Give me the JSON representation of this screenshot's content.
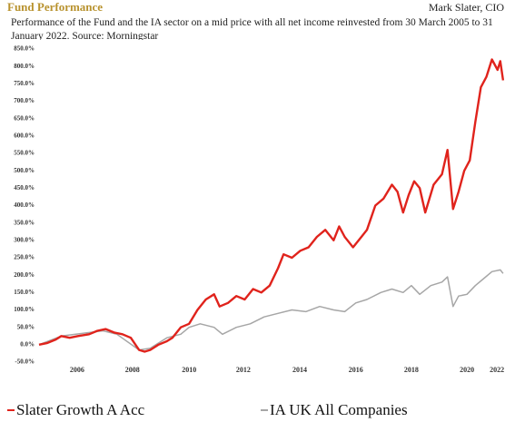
{
  "chart_data": {
    "type": "line",
    "title": "Fund Performance",
    "author": "Mark Slater, CIO",
    "subtitle": "Performance of the Fund and the IA sector on a mid price with all net income reinvested from 30 March 2005 to 31 January 2022. Source: Morningstar",
    "xlim": [
      2005.2,
      2022.1
    ],
    "ylim": [
      -50,
      850
    ],
    "grid": false,
    "xticks": [
      {
        "value": 2006.57,
        "label": "2006"
      },
      {
        "value": 2008.56,
        "label": "2008"
      },
      {
        "value": 2010.6,
        "label": "2010"
      },
      {
        "value": 2012.55,
        "label": "2012"
      },
      {
        "value": 2014.58,
        "label": "2014"
      },
      {
        "value": 2016.6,
        "label": "2016"
      },
      {
        "value": 2018.6,
        "label": "2018"
      },
      {
        "value": 2020.6,
        "label": "2020"
      },
      {
        "value": 2021.68,
        "label": "2022"
      }
    ],
    "yticks": [
      {
        "value": 850,
        "label": "850.0%"
      },
      {
        "value": 800,
        "label": "800.0%"
      },
      {
        "value": 750,
        "label": "750.0%"
      },
      {
        "value": 700,
        "label": "700.0%"
      },
      {
        "value": 650,
        "label": "650.0%"
      },
      {
        "value": 600,
        "label": "600.0%"
      },
      {
        "value": 550,
        "label": "550.0%"
      },
      {
        "value": 500,
        "label": "500.0%"
      },
      {
        "value": 450,
        "label": "450.0%"
      },
      {
        "value": 400,
        "label": "400.0%"
      },
      {
        "value": 350,
        "label": "350.0%"
      },
      {
        "value": 300,
        "label": "300.0%"
      },
      {
        "value": 250,
        "label": "250.0%"
      },
      {
        "value": 200,
        "label": "200.0%"
      },
      {
        "value": 150,
        "label": "150.0%"
      },
      {
        "value": 100,
        "label": "100.0%"
      },
      {
        "value": 50,
        "label": "50.0%"
      },
      {
        "value": 0,
        "label": "0.0%"
      },
      {
        "value": -50,
        "label": "-50.0%"
      }
    ],
    "series": [
      {
        "name": "Slater Growth A Acc",
        "color": "#e0231c",
        "x": [
          2005.2,
          2005.5,
          2005.8,
          2006.0,
          2006.3,
          2006.6,
          2007.0,
          2007.3,
          2007.6,
          2007.9,
          2008.2,
          2008.5,
          2008.8,
          2009.0,
          2009.2,
          2009.5,
          2009.8,
          2010.0,
          2010.3,
          2010.6,
          2010.9,
          2011.2,
          2011.5,
          2011.7,
          2012.0,
          2012.3,
          2012.6,
          2012.9,
          2013.2,
          2013.5,
          2013.8,
          2014.0,
          2014.3,
          2014.6,
          2014.9,
          2015.2,
          2015.5,
          2015.8,
          2016.0,
          2016.2,
          2016.5,
          2016.8,
          2017.0,
          2017.3,
          2017.6,
          2017.9,
          2018.1,
          2018.3,
          2018.5,
          2018.7,
          2018.9,
          2019.1,
          2019.4,
          2019.7,
          2019.9,
          2020.1,
          2020.3,
          2020.5,
          2020.7,
          2020.9,
          2021.1,
          2021.3,
          2021.5,
          2021.7,
          2021.8,
          2021.9
        ],
        "values": [
          0,
          5,
          15,
          25,
          20,
          25,
          30,
          40,
          45,
          35,
          30,
          20,
          -15,
          -20,
          -15,
          0,
          10,
          20,
          50,
          60,
          100,
          130,
          145,
          110,
          120,
          140,
          130,
          160,
          150,
          170,
          220,
          260,
          250,
          270,
          280,
          310,
          330,
          300,
          340,
          310,
          280,
          310,
          330,
          400,
          420,
          460,
          440,
          380,
          430,
          470,
          450,
          380,
          460,
          490,
          560,
          390,
          440,
          500,
          530,
          640,
          740,
          770,
          820,
          790,
          815,
          760
        ]
      },
      {
        "name": "IA UK All Companies",
        "color": "#a6a6a6",
        "x": [
          2005.2,
          2006.0,
          2007.5,
          2008.0,
          2008.8,
          2009.2,
          2009.8,
          2010.3,
          2010.6,
          2011.0,
          2011.5,
          2011.8,
          2012.3,
          2012.8,
          2013.3,
          2013.8,
          2014.3,
          2014.8,
          2015.3,
          2015.8,
          2016.2,
          2016.6,
          2017.0,
          2017.5,
          2017.9,
          2018.3,
          2018.6,
          2018.9,
          2019.3,
          2019.7,
          2019.9,
          2020.1,
          2020.3,
          2020.6,
          2020.9,
          2021.2,
          2021.5,
          2021.8,
          2021.9
        ],
        "values": [
          0,
          25,
          40,
          30,
          -15,
          -10,
          20,
          30,
          50,
          60,
          50,
          30,
          50,
          60,
          80,
          90,
          100,
          95,
          110,
          100,
          95,
          120,
          130,
          150,
          160,
          150,
          170,
          145,
          170,
          180,
          195,
          110,
          140,
          145,
          170,
          190,
          210,
          215,
          205
        ]
      }
    ]
  }
}
